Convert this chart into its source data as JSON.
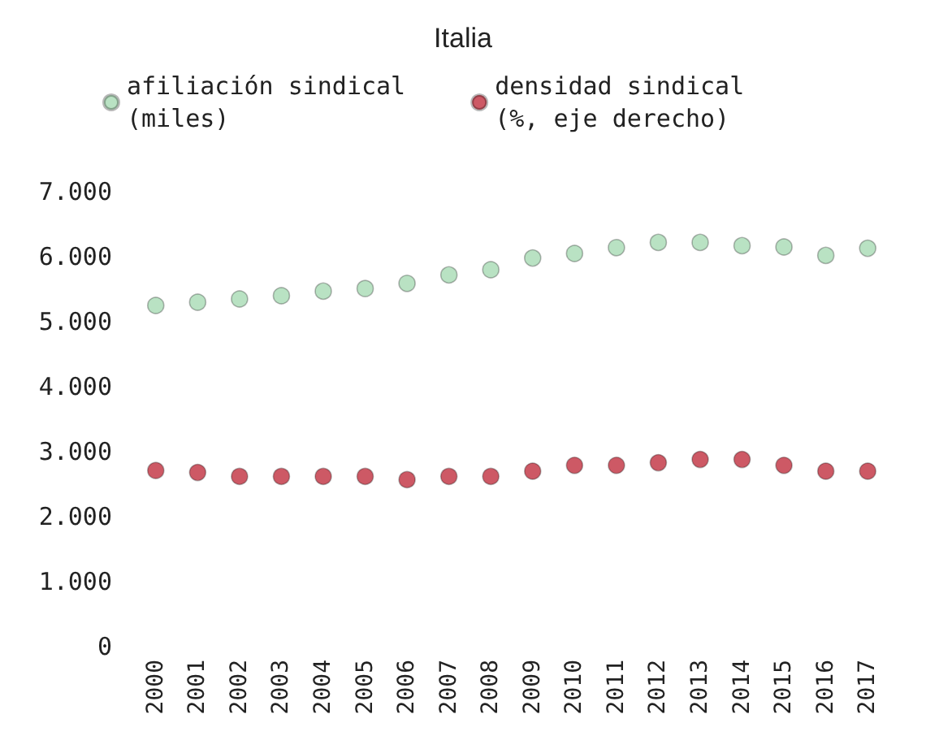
{
  "chart_data": {
    "type": "scatter",
    "title": "Italia",
    "categories": [
      "2000",
      "2001",
      "2002",
      "2003",
      "2004",
      "2005",
      "2006",
      "2007",
      "2008",
      "2009",
      "2010",
      "2011",
      "2012",
      "2013",
      "2014",
      "2015",
      "2016",
      "2017"
    ],
    "series": [
      {
        "name": "afiliación sindical\n(miles)",
        "color": "#a8dbb4",
        "values": [
          5250,
          5300,
          5350,
          5400,
          5470,
          5510,
          5590,
          5720,
          5800,
          5980,
          6050,
          6140,
          6220,
          6220,
          6170,
          6150,
          6020,
          6130
        ]
      },
      {
        "name": "densidad sindical\n(%, eje derecho)",
        "color": "#c0303f",
        "values": [
          2710,
          2680,
          2620,
          2620,
          2620,
          2620,
          2570,
          2620,
          2620,
          2700,
          2790,
          2790,
          2830,
          2880,
          2880,
          2790,
          2700,
          2700
        ]
      }
    ],
    "ylim": [
      0,
      7000
    ],
    "yticks": [
      {
        "value": 0,
        "label": "0"
      },
      {
        "value": 1000,
        "label": "1.000"
      },
      {
        "value": 2000,
        "label": "2.000"
      },
      {
        "value": 3000,
        "label": "3.000"
      },
      {
        "value": 4000,
        "label": "4.000"
      },
      {
        "value": 5000,
        "label": "5.000"
      },
      {
        "value": 6000,
        "label": "6.000"
      },
      {
        "value": 7000,
        "label": "7.000"
      }
    ],
    "legend": "top",
    "marker": "circle",
    "grid": false
  }
}
